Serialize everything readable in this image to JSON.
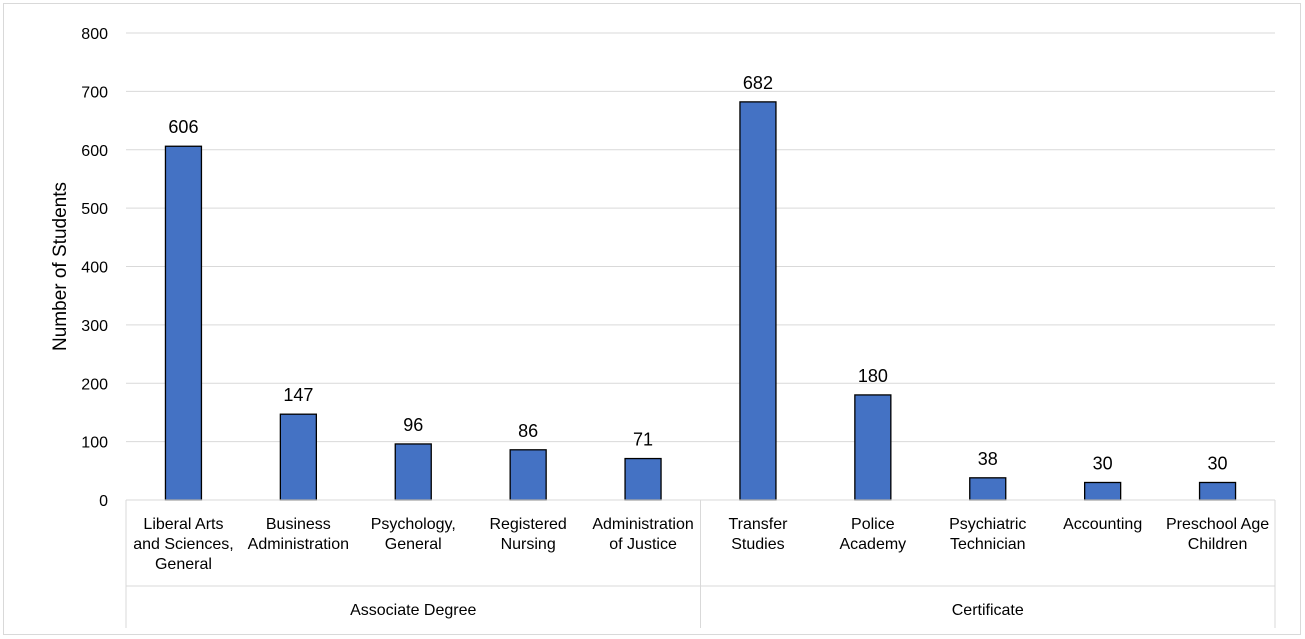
{
  "chart_data": {
    "type": "bar",
    "title": "",
    "ylabel": "Number of Students",
    "xlabel": "",
    "ylim": [
      0,
      800
    ],
    "yticks": [
      0,
      100,
      200,
      300,
      400,
      500,
      600,
      700,
      800
    ],
    "grid": true,
    "categories": [
      [
        "Liberal Arts",
        "and Sciences,",
        "General"
      ],
      [
        "Business",
        "Administration"
      ],
      [
        "Psychology,",
        "General"
      ],
      [
        "Registered",
        "Nursing"
      ],
      [
        "Administration",
        "of Justice"
      ],
      [
        "Transfer",
        "Studies"
      ],
      [
        "Police",
        "Academy"
      ],
      [
        "Psychiatric",
        "Technician"
      ],
      [
        "Accounting"
      ],
      [
        "Preschool Age",
        "Children"
      ]
    ],
    "groups": [
      {
        "label": "Associate Degree",
        "start": 0,
        "count": 5
      },
      {
        "label": "Certificate",
        "start": 5,
        "count": 5
      }
    ],
    "series": [
      {
        "values": [
          606,
          147,
          96,
          86,
          71,
          682,
          180,
          38,
          30,
          30
        ]
      }
    ],
    "bar_color": "#4472c4",
    "bar_border_color": "#000000",
    "gridline_color": "#d9d9d9"
  }
}
